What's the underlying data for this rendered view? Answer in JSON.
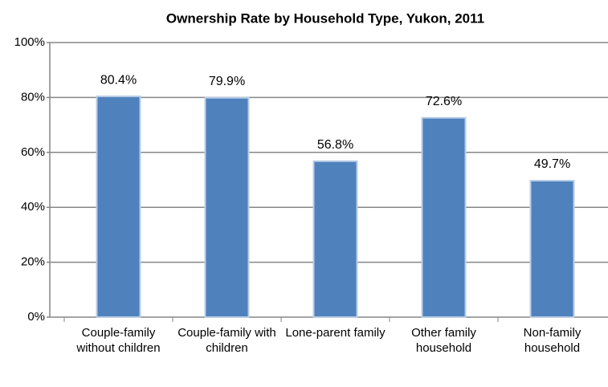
{
  "chart_data": {
    "type": "bar",
    "title": "Ownership Rate by Household Type, Yukon, 2011",
    "categories": [
      "Couple-family without children",
      "Couple-family with children",
      "Lone-parent family",
      "Other family household",
      "Non-family household"
    ],
    "values": [
      80.4,
      79.9,
      56.8,
      72.6,
      49.7
    ],
    "value_labels": [
      "80.4%",
      "79.9%",
      "56.8%",
      "72.6%",
      "49.7%"
    ],
    "color": "#4f81bd",
    "ylim": [
      0,
      100
    ],
    "yticks": [
      {
        "value": 0,
        "label": "0%"
      },
      {
        "value": 20,
        "label": "20%"
      },
      {
        "value": 40,
        "label": "40%"
      },
      {
        "value": 60,
        "label": "60%"
      },
      {
        "value": 80,
        "label": "80%"
      },
      {
        "value": 100,
        "label": "100%"
      }
    ],
    "grid": true
  }
}
